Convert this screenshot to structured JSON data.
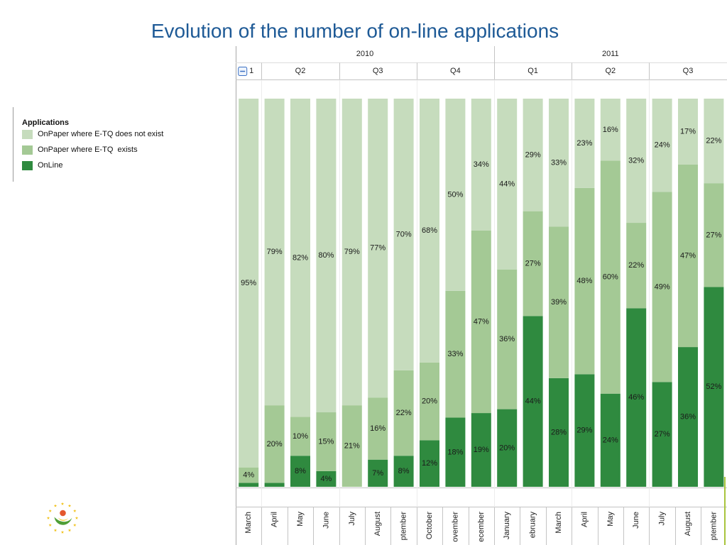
{
  "chart_data": {
    "type": "bar",
    "stacking": "percent",
    "orientation": "vertical",
    "title": "Evolution of the number of on-line applications",
    "ylim": [
      0,
      100
    ],
    "grid": false,
    "legend": {
      "title": "Applications",
      "position": "left"
    },
    "x_hierarchy": [
      {
        "year": "2010",
        "quarters": [
          {
            "label": "1",
            "icon": "collapse-icon",
            "months": [
              "March"
            ]
          },
          {
            "label": "Q2",
            "months": [
              "April",
              "May",
              "June"
            ]
          },
          {
            "label": "Q3",
            "months": [
              "July",
              "August",
              "ptember"
            ]
          },
          {
            "label": "Q4",
            "months": [
              "October",
              "ovember",
              "ecember"
            ]
          }
        ]
      },
      {
        "year": "2011",
        "quarters": [
          {
            "label": "Q1",
            "months": [
              "January",
              "ebruary",
              "March"
            ]
          },
          {
            "label": "Q2",
            "months": [
              "April",
              "May",
              "June"
            ]
          },
          {
            "label": "Q3",
            "months": [
              "July",
              "August",
              "ptember"
            ]
          }
        ]
      }
    ],
    "series": [
      {
        "name": "OnPaper where E-TQ does not exist",
        "color": "#c6dcbd",
        "values": [
          95,
          79,
          82,
          80,
          79,
          77,
          70,
          68,
          50,
          34,
          44,
          29,
          33,
          23,
          16,
          32,
          24,
          17,
          22
        ],
        "labels": [
          "95%",
          "79%",
          "82%",
          "80%",
          "79%",
          "77%",
          "70%",
          "68%",
          "50%",
          "34%",
          "44%",
          "29%",
          "33%",
          "23%",
          "16%",
          "32%",
          "24%",
          "17%",
          "22%"
        ]
      },
      {
        "name": "OnPaper where E-TQ  exists",
        "color": "#a4c995",
        "values": [
          4,
          20,
          10,
          15,
          21,
          16,
          22,
          20,
          33,
          47,
          36,
          27,
          39,
          48,
          60,
          22,
          49,
          47,
          27
        ],
        "labels": [
          "4%",
          "20%",
          "10%",
          "15%",
          "21%",
          "16%",
          "22%",
          "20%",
          "33%",
          "47%",
          "36%",
          "27%",
          "39%",
          "48%",
          "60%",
          "22%",
          "49%",
          "47%",
          "27%"
        ]
      },
      {
        "name": "OnLine",
        "color": "#2f8a3f",
        "values": [
          1,
          1,
          8,
          4,
          0,
          7,
          8,
          12,
          18,
          19,
          20,
          44,
          28,
          29,
          24,
          46,
          27,
          36,
          52
        ],
        "labels": [
          "",
          "",
          "8%",
          "4%",
          "",
          "7%",
          "8%",
          "12%",
          "18%",
          "19%",
          "20%",
          "44%",
          "28%",
          "29%",
          "24%",
          "46%",
          "27%",
          "36%",
          "52%"
        ]
      }
    ]
  },
  "logo_icon": "eu-stars-logo-icon"
}
